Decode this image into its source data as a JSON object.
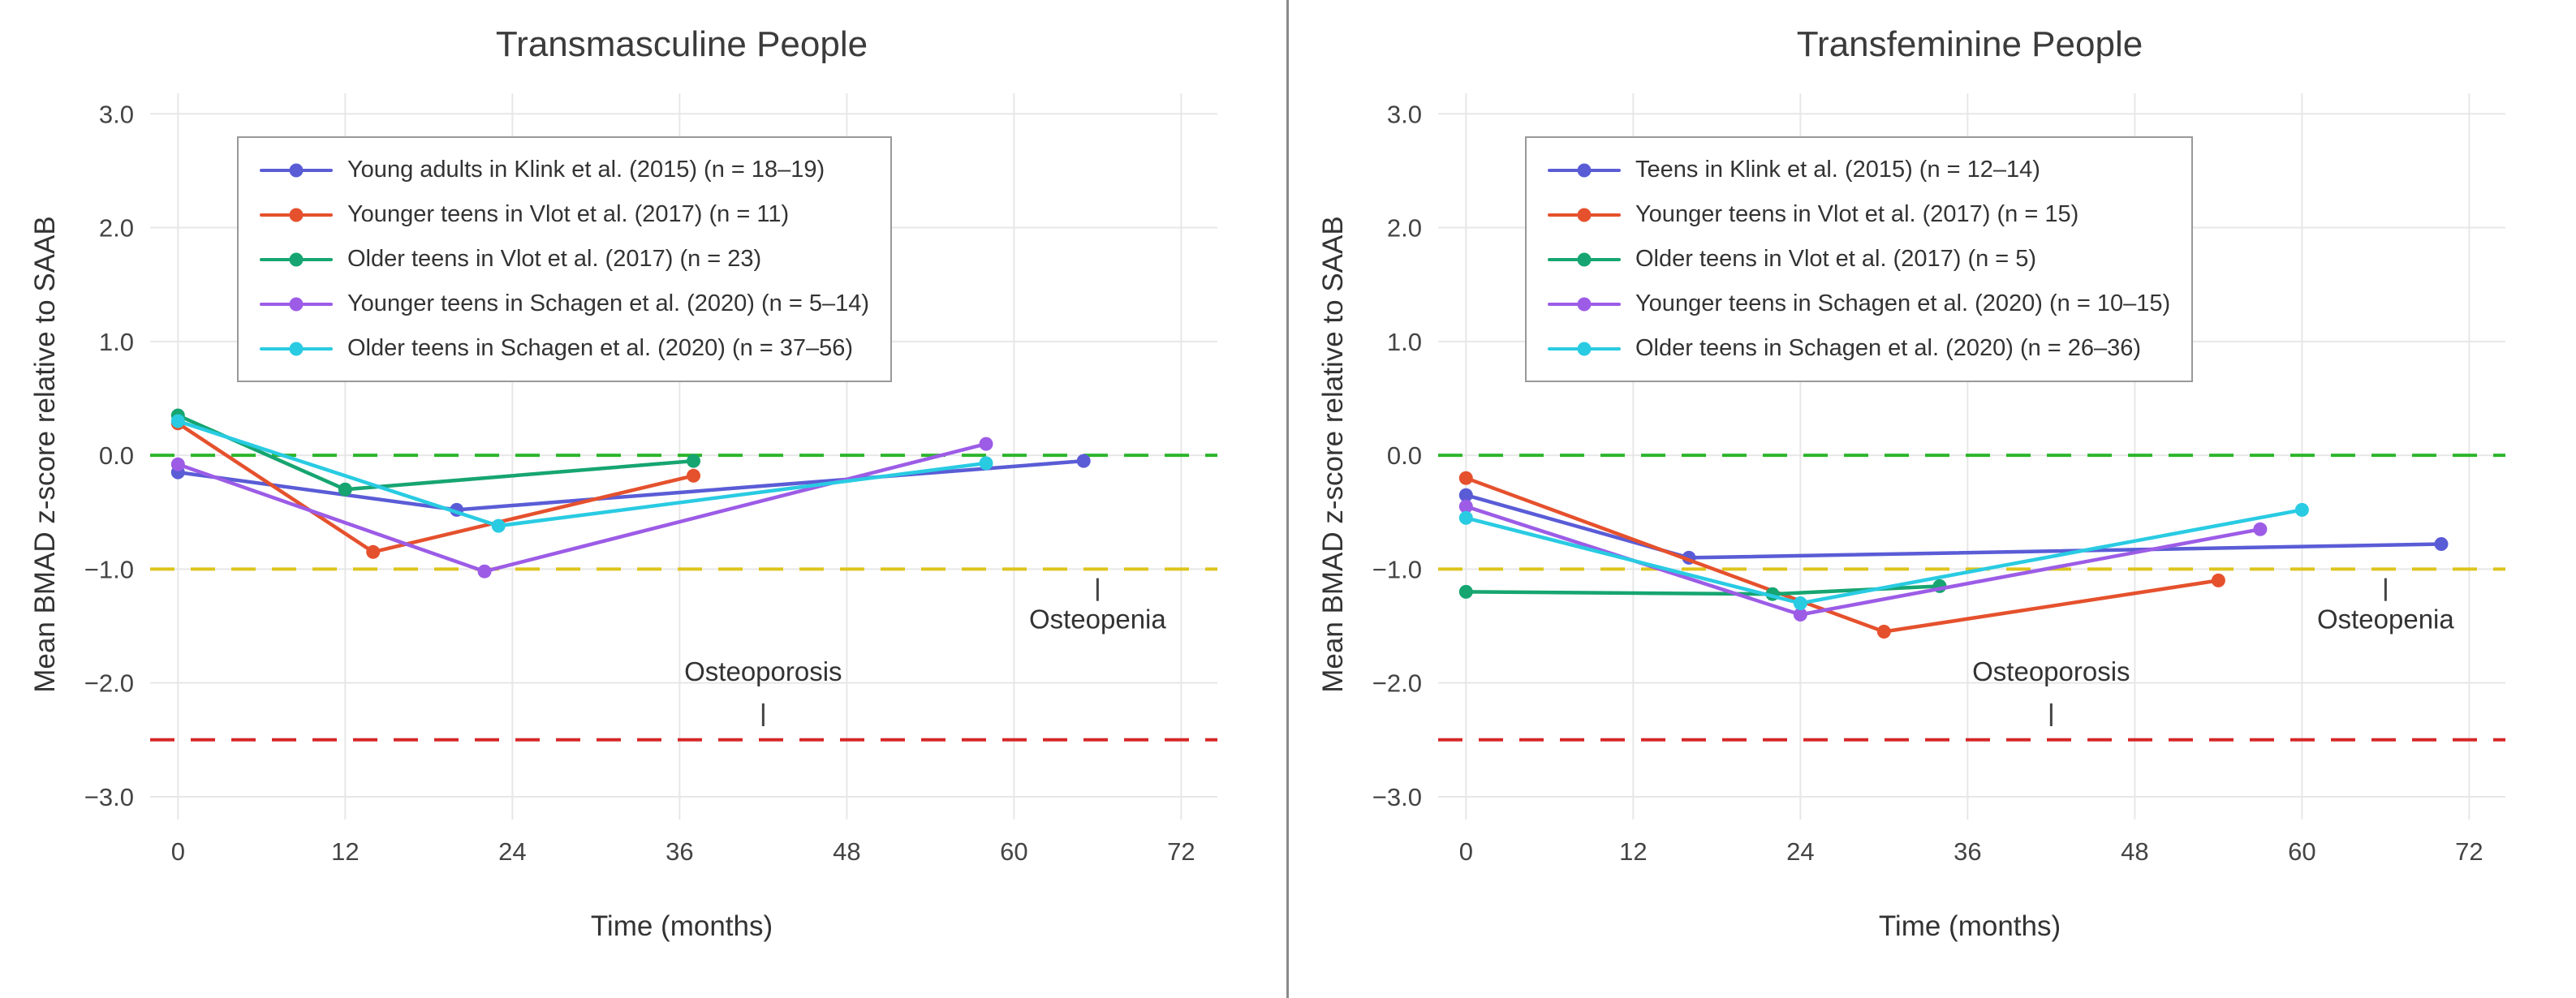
{
  "style": {
    "grid_color": "#e7e7e7",
    "divider_color": "#8a8a8a",
    "background_color": "#ffffff",
    "axis_text_color": "#444444",
    "annotation_color": "#333333",
    "legend_border_color": "#999999"
  },
  "chart_data": [
    {
      "type": "line",
      "title": "Transmasculine People",
      "xlabel": "Time (months)",
      "ylabel": "Mean BMAD z-score relative to SAAB",
      "xlim": [
        -2,
        74.6
      ],
      "ylim": [
        -3.2,
        3.18
      ],
      "grid": true,
      "legend_position": "top-left",
      "xticks": {
        "values": [
          0,
          12,
          24,
          36,
          48,
          60,
          72
        ],
        "labels": [
          "0",
          "12",
          "24",
          "36",
          "48",
          "60",
          "72"
        ]
      },
      "yticks": {
        "values": [
          3,
          2,
          1,
          0,
          -1,
          -2,
          -3
        ],
        "labels": [
          "3.0",
          "2.0",
          "1.0",
          "0.0",
          "−1.0",
          "−2.0",
          "−3.0"
        ]
      },
      "thresholds": [
        {
          "name": "zero-line",
          "y": 0,
          "color": "#2cb52c"
        },
        {
          "name": "osteopenia-line",
          "y": -1,
          "color": "#ddc41c"
        },
        {
          "name": "osteoporosis-line",
          "y": -2.5,
          "color": "#d62728"
        }
      ],
      "annotations": [
        {
          "text": "Osteopenia",
          "x": 66,
          "y": -1.52,
          "tick_from": -1.08,
          "tick_to": -1.28
        },
        {
          "text": "Osteoporosis",
          "x": 42,
          "y": -1.98,
          "tick_from": -2.18,
          "tick_to": -2.38
        }
      ],
      "series": [
        {
          "name": "Young adults in Klink et al. (2015) (n = 18–19)",
          "color": "#5a5cd6",
          "points": [
            [
              0,
              -0.15
            ],
            [
              20,
              -0.48
            ],
            [
              65,
              -0.05
            ]
          ]
        },
        {
          "name": "Younger teens in Vlot et al. (2017) (n = 11)",
          "color": "#e5512d",
          "points": [
            [
              0,
              0.28
            ],
            [
              14,
              -0.85
            ],
            [
              37,
              -0.18
            ]
          ]
        },
        {
          "name": "Older teens in Vlot et al. (2017) (n = 23)",
          "color": "#16a571",
          "points": [
            [
              0,
              0.35
            ],
            [
              12,
              -0.3
            ],
            [
              37,
              -0.05
            ]
          ]
        },
        {
          "name": "Younger teens in Schagen et al. (2020) (n = 5–14)",
          "color": "#9c5ce6",
          "points": [
            [
              0,
              -0.08
            ],
            [
              22,
              -1.02
            ],
            [
              58,
              0.1
            ]
          ]
        },
        {
          "name": "Older teens in Schagen et al. (2020) (n = 37–56)",
          "color": "#29cbe2",
          "points": [
            [
              0,
              0.3
            ],
            [
              23,
              -0.62
            ],
            [
              58,
              -0.07
            ]
          ]
        }
      ]
    },
    {
      "type": "line",
      "title": "Transfeminine People",
      "xlabel": "Time (months)",
      "ylabel": "Mean BMAD z-score relative to SAAB",
      "xlim": [
        -2,
        74.6
      ],
      "ylim": [
        -3.2,
        3.18
      ],
      "grid": true,
      "legend_position": "top-left",
      "xticks": {
        "values": [
          0,
          12,
          24,
          36,
          48,
          60,
          72
        ],
        "labels": [
          "0",
          "12",
          "24",
          "36",
          "48",
          "60",
          "72"
        ]
      },
      "yticks": {
        "values": [
          3,
          2,
          1,
          0,
          -1,
          -2,
          -3
        ],
        "labels": [
          "3.0",
          "2.0",
          "1.0",
          "0.0",
          "−1.0",
          "−2.0",
          "−3.0"
        ]
      },
      "thresholds": [
        {
          "name": "zero-line",
          "y": 0,
          "color": "#2cb52c"
        },
        {
          "name": "osteopenia-line",
          "y": -1,
          "color": "#ddc41c"
        },
        {
          "name": "osteoporosis-line",
          "y": -2.5,
          "color": "#d62728"
        }
      ],
      "annotations": [
        {
          "text": "Osteopenia",
          "x": 66,
          "y": -1.52,
          "tick_from": -1.08,
          "tick_to": -1.28
        },
        {
          "text": "Osteoporosis",
          "x": 42,
          "y": -1.98,
          "tick_from": -2.18,
          "tick_to": -2.38
        }
      ],
      "series": [
        {
          "name": "Teens in Klink et al. (2015) (n = 12–14)",
          "color": "#5a5cd6",
          "points": [
            [
              0,
              -0.35
            ],
            [
              16,
              -0.9
            ],
            [
              70,
              -0.78
            ]
          ]
        },
        {
          "name": "Younger teens in Vlot et al. (2017) (n = 15)",
          "color": "#e5512d",
          "points": [
            [
              0,
              -0.2
            ],
            [
              30,
              -1.55
            ],
            [
              54,
              -1.1
            ]
          ]
        },
        {
          "name": "Older teens in Vlot et al. (2017) (n = 5)",
          "color": "#16a571",
          "points": [
            [
              0,
              -1.2
            ],
            [
              22,
              -1.22
            ],
            [
              34,
              -1.15
            ]
          ]
        },
        {
          "name": "Younger teens in Schagen et al. (2020) (n = 10–15)",
          "color": "#9c5ce6",
          "points": [
            [
              0,
              -0.45
            ],
            [
              24,
              -1.4
            ],
            [
              57,
              -0.65
            ]
          ]
        },
        {
          "name": "Older teens in Schagen et al. (2020) (n = 26–36)",
          "color": "#29cbe2",
          "points": [
            [
              0,
              -0.55
            ],
            [
              24,
              -1.3
            ],
            [
              60,
              -0.48
            ]
          ]
        }
      ]
    }
  ]
}
